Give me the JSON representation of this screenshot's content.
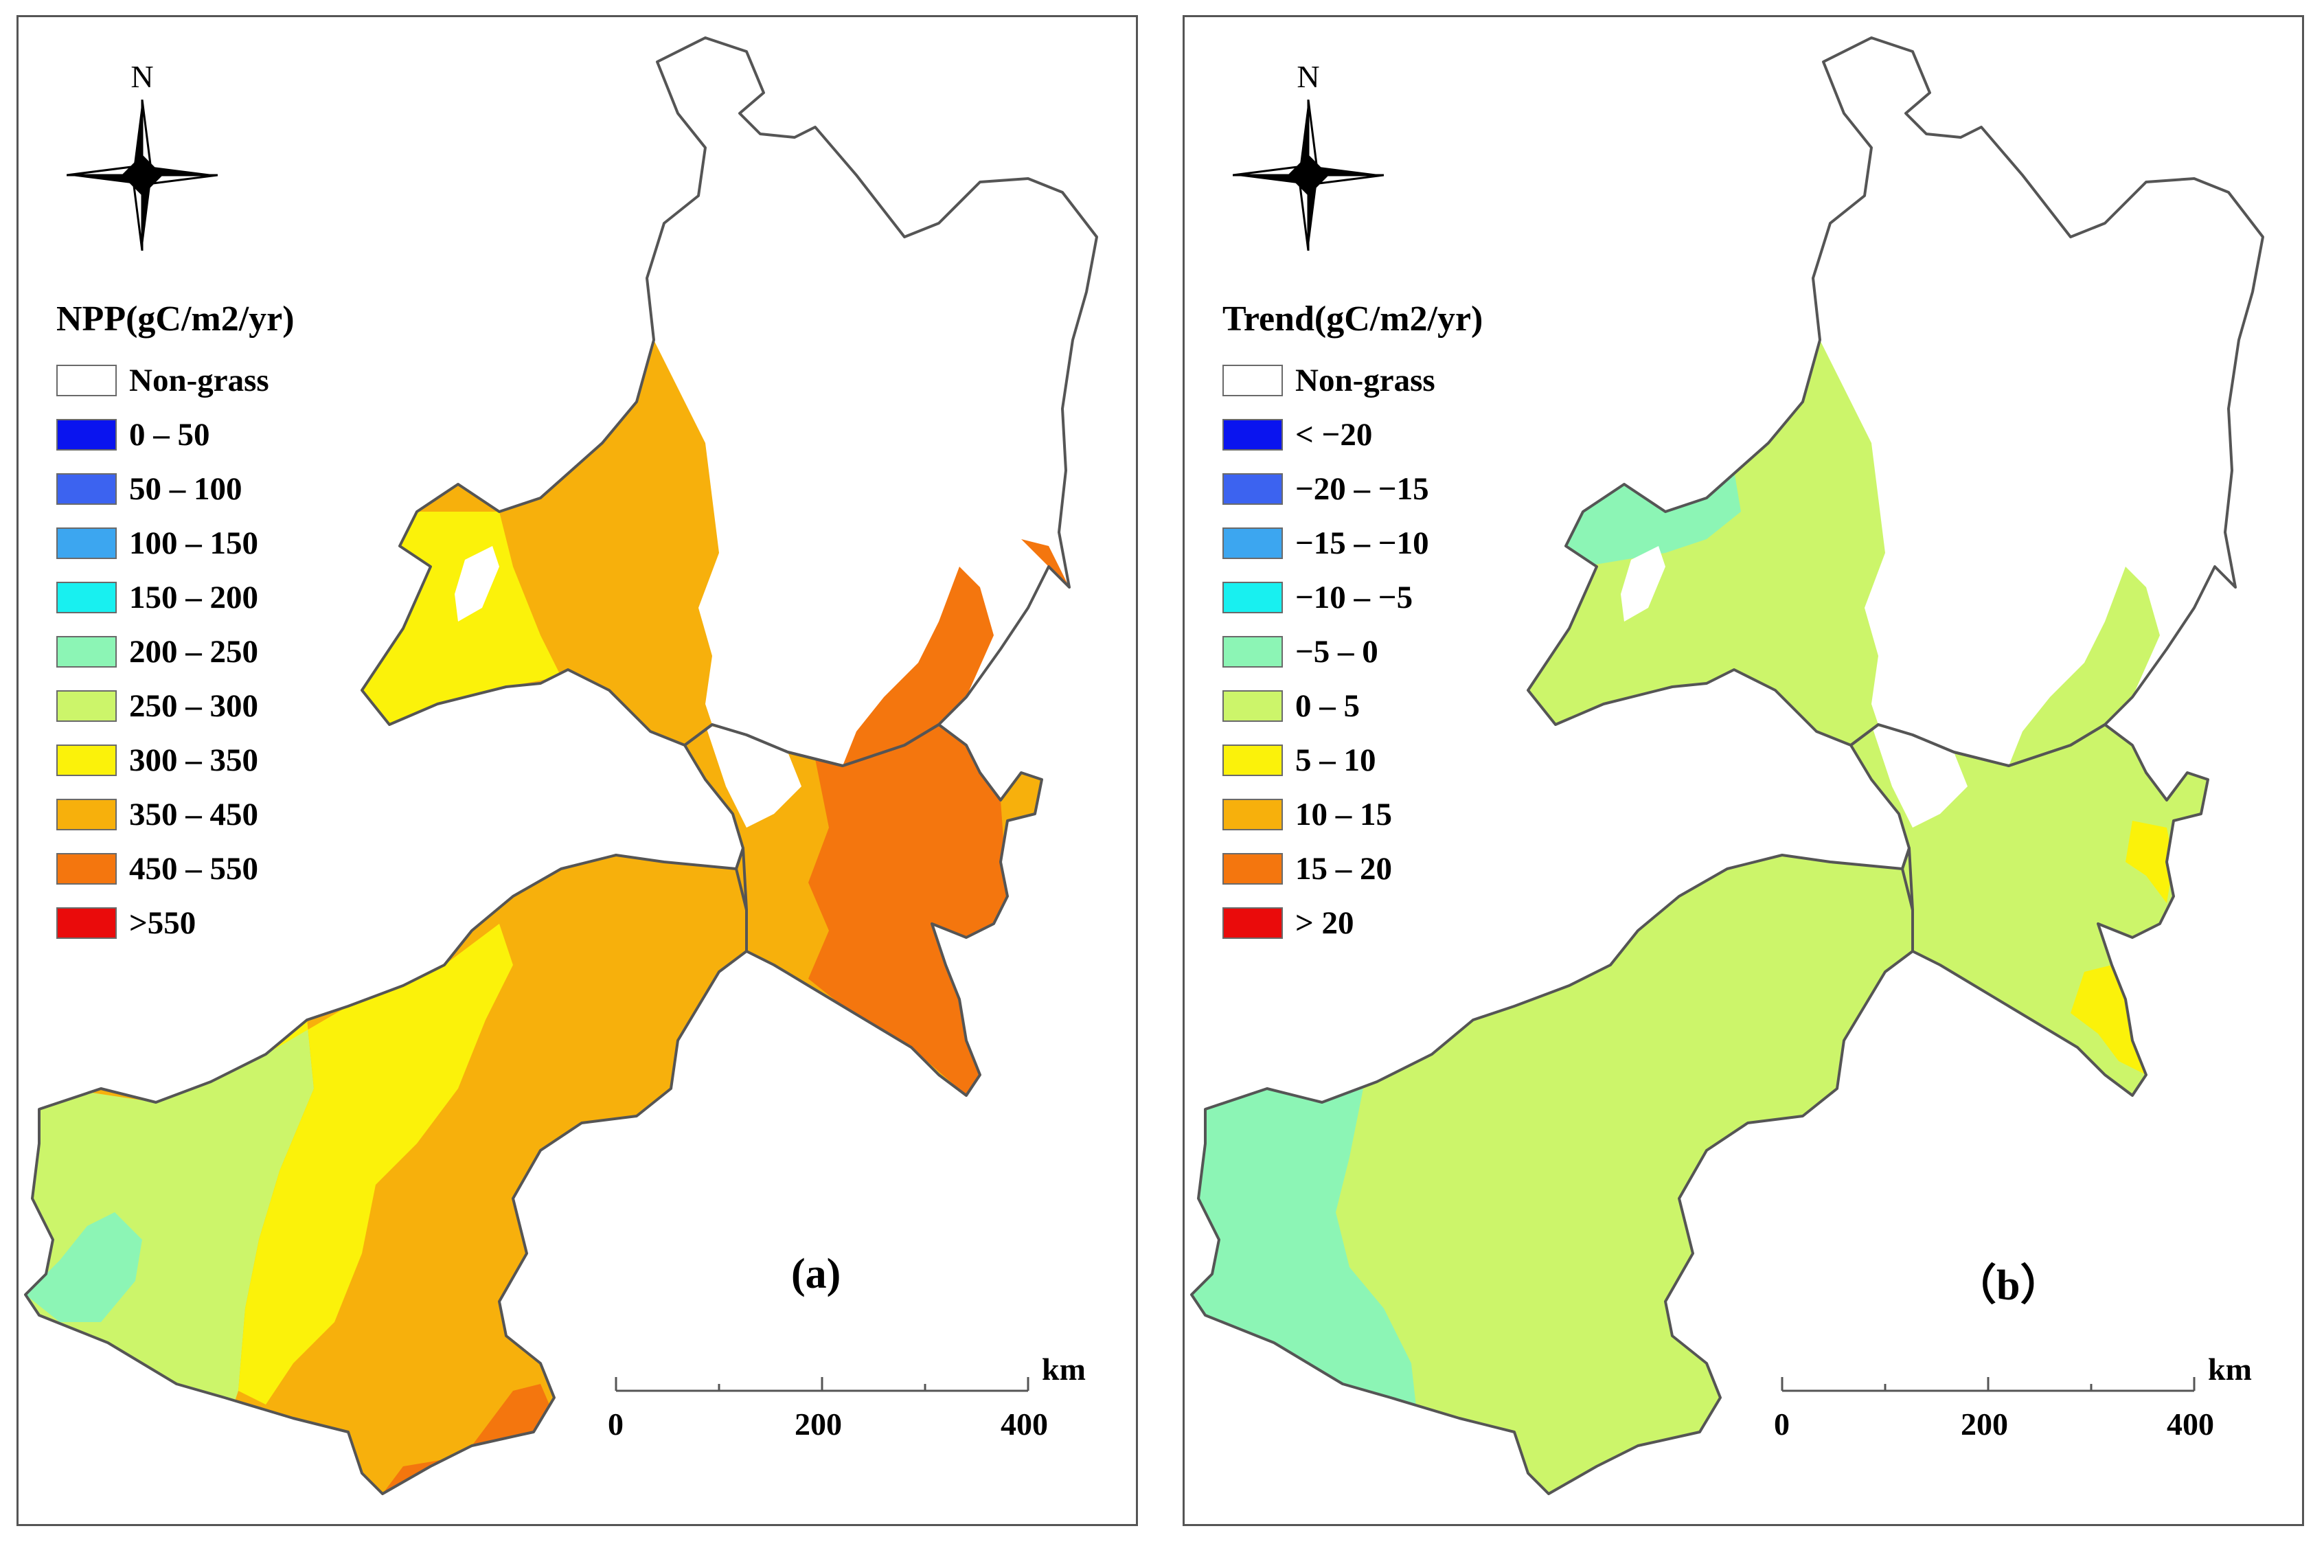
{
  "colors": {
    "non_grass": "#ffffff",
    "border": "#555555",
    "npp": [
      "#0a14ef",
      "#3c63f0",
      "#3ca6f0",
      "#18f0f0",
      "#8cf5b5",
      "#ccf56a",
      "#fbf20a",
      "#f7b00c",
      "#f4760e",
      "#ea0b0b"
    ],
    "trend": [
      "#0a14ef",
      "#3c63f0",
      "#3ca6f0",
      "#18f0f0",
      "#8cf5b5",
      "#ccf56a",
      "#fbf20a",
      "#f7b00c",
      "#f4760e",
      "#ea0b0b"
    ]
  },
  "panels": [
    {
      "north_label": "N",
      "legend_title": "NPP(gC/m2/yr)",
      "legend": [
        "Non-grass",
        "0 – 50",
        "50 – 100",
        "100 – 150",
        "150 – 200",
        "200 – 250",
        "250 – 300",
        "300 – 350",
        "350 – 450",
        "450 – 550",
        ">550"
      ],
      "label": "(a)",
      "scale": {
        "ticks": [
          "0",
          "200",
          "400"
        ],
        "unit": "km"
      }
    },
    {
      "north_label": "N",
      "legend_title": "Trend(gC/m2/yr)",
      "legend": [
        "Non-grass",
        "< −20",
        "−20 – −15",
        "−15 – −10",
        "−10 – −5",
        "−5 – 0",
        "0 – 5",
        "5 – 10",
        "10 – 15",
        "15 – 20",
        "> 20"
      ],
      "label": "（b）",
      "scale": {
        "ticks": [
          "0",
          "200",
          "400"
        ],
        "unit": "km"
      }
    }
  ]
}
